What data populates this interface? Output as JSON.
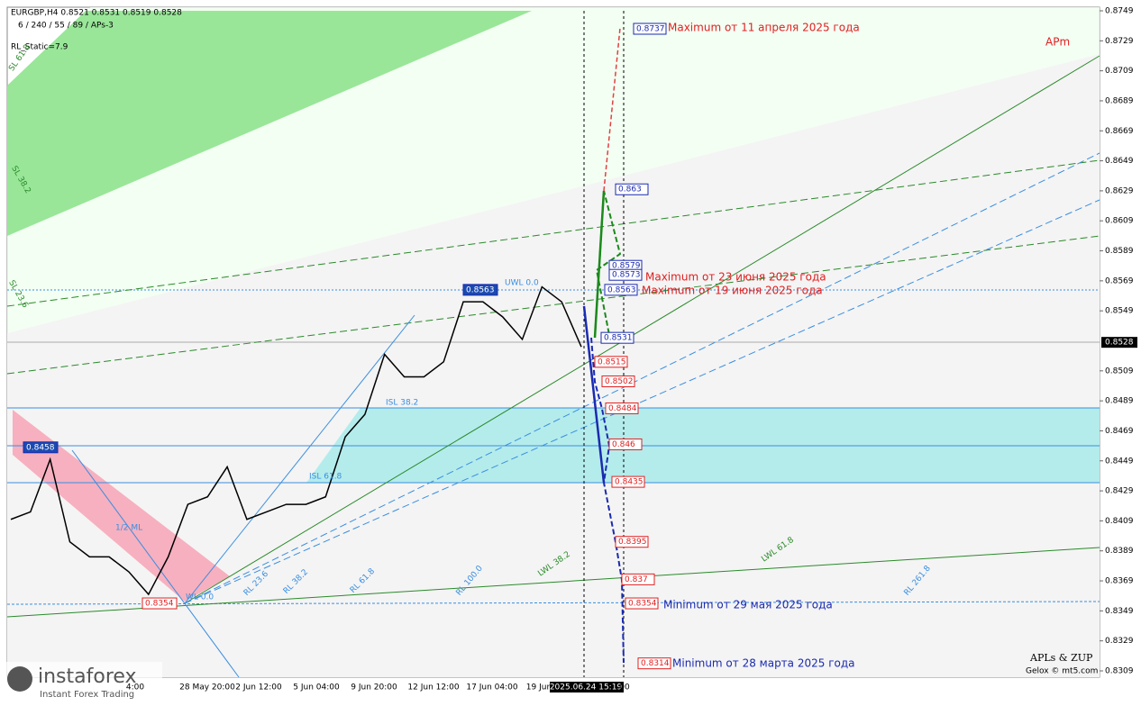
{
  "header": {
    "symbol": "EURGBP,H4  0.8521 0.8531 0.8519 0.8528",
    "params": "6 / 240 / 55 / 89 / APs-3",
    "static": "RL_Static=7.9"
  },
  "price_axis": {
    "ylim": [
      0.8309,
      0.8749
    ],
    "ticks": [
      0.8749,
      0.8729,
      0.8709,
      0.8689,
      0.8669,
      0.8649,
      0.8629,
      0.8609,
      0.8589,
      0.8569,
      0.8549,
      0.8509,
      0.8489,
      0.8469,
      0.8449,
      0.8429,
      0.8409,
      0.8389,
      0.8369,
      0.8349,
      0.8329,
      0.8309
    ],
    "current": 0.8528
  },
  "time_axis": [
    "4:00",
    "28 May 20:00",
    "2 Jun 12:00",
    "5 Jun 04:00",
    "9 Jun 20:00",
    "12 Jun 12:00",
    "17 Jun 04:00",
    "19 Jun",
    "2025.06.24 15:19",
    "00"
  ],
  "price_path": [
    0.841,
    0.8415,
    0.845,
    0.8395,
    0.8385,
    0.8385,
    0.8375,
    0.836,
    0.8385,
    0.842,
    0.8425,
    0.8445,
    0.841,
    0.8415,
    0.842,
    0.842,
    0.8425,
    0.8465,
    0.848,
    0.852,
    0.8505,
    0.8505,
    0.8515,
    0.8555,
    0.8555,
    0.8545,
    0.853,
    0.8565,
    0.8555,
    0.8525
  ],
  "target_tags": [
    0.8737,
    0.863,
    0.8579,
    0.8573,
    0.8563,
    0.8531,
    0.8515,
    0.8502,
    0.8484,
    0.846,
    0.8435,
    0.8395,
    0.837,
    0.8354,
    0.8314
  ],
  "left_tags": [
    0.8563,
    0.8458,
    0.8354
  ],
  "annotations": [
    "Maximum от 11 апреля 2025 года",
    "Maximum от 23 июня 2025 года",
    "Maximum от 19 июня 2025 года",
    "Minimum от 29 мая 2025 года",
    "Minimum от 28 марта 2025 года"
  ],
  "line_labels": [
    "UWL 0.0",
    "ISL 38.2",
    "ISL 61.8",
    "1/2 ML",
    "WL 0.0",
    "LWL 38.2",
    "LWL 61.8",
    "RL 23.6",
    "RL 38.2",
    "RL 61.8",
    "RL 100.0",
    "RL 261.8",
    "SL 61.8",
    "SL 38.2",
    "SL 23.6"
  ],
  "brand": {
    "apm": "APm",
    "author": "APLs & ZUP",
    "site": "Gelox © mt5.com",
    "logo": "instaforex",
    "tagline": "Instant Forex Trading"
  }
}
